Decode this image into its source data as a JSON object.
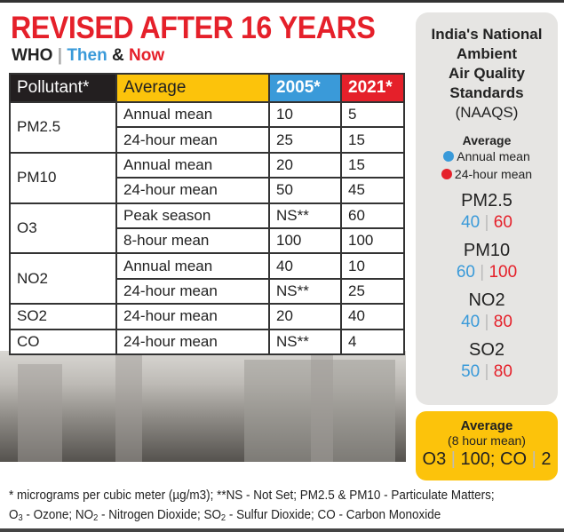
{
  "title": "REVISED AFTER 16 YEARS",
  "subtitle": {
    "who": "WHO",
    "sep": "|",
    "then": "Then",
    "amp": "&",
    "now": "Now"
  },
  "colors": {
    "red": "#e5202a",
    "blue": "#3a9ad9",
    "yellow": "#fcc30b",
    "black": "#231f20",
    "panel": "#e6e5e3"
  },
  "chart_data": {
    "type": "table",
    "columns": [
      "Pollutant*",
      "Average",
      "2005*",
      "2021*"
    ],
    "rows": [
      {
        "pollutant": "PM2.5",
        "average": "Annual mean",
        "y2005": "10",
        "y2021": "5"
      },
      {
        "pollutant": "PM2.5",
        "average": "24-hour mean",
        "y2005": "25",
        "y2021": "15"
      },
      {
        "pollutant": "PM10",
        "average": "Annual mean",
        "y2005": "20",
        "y2021": "15"
      },
      {
        "pollutant": "PM10",
        "average": "24-hour mean",
        "y2005": "50",
        "y2021": "45"
      },
      {
        "pollutant": "O3",
        "average": "Peak season",
        "y2005": "NS**",
        "y2021": "60"
      },
      {
        "pollutant": "O3",
        "average": "8-hour mean",
        "y2005": "100",
        "y2021": "100"
      },
      {
        "pollutant": "NO2",
        "average": "Annual mean",
        "y2005": "40",
        "y2021": "10"
      },
      {
        "pollutant": "NO2",
        "average": "24-hour mean",
        "y2005": "NS**",
        "y2021": "25"
      },
      {
        "pollutant": "SO2",
        "average": "24-hour mean",
        "y2005": "20",
        "y2021": "40"
      },
      {
        "pollutant": "CO",
        "average": "24-hour mean",
        "y2005": "NS**",
        "y2021": "4"
      }
    ]
  },
  "naaqs": {
    "title": [
      "India's National",
      "Ambient",
      "Air Quality",
      "Standards"
    ],
    "abbr": "(NAAQS)",
    "legend_title": "Average",
    "legend": [
      {
        "label": "Annual mean",
        "color": "#3a9ad9"
      },
      {
        "label": "24-hour mean",
        "color": "#e5202a"
      }
    ],
    "items": [
      {
        "name": "PM2.5",
        "annual": "40",
        "daily": "60"
      },
      {
        "name": "PM10",
        "annual": "60",
        "daily": "100"
      },
      {
        "name": "NO2",
        "annual": "40",
        "daily": "80"
      },
      {
        "name": "SO2",
        "annual": "50",
        "daily": "80"
      }
    ],
    "box": {
      "title": "Average",
      "sub": "(8 hour mean)",
      "o3": "O3",
      "o3_val": "100;",
      "co": "CO",
      "co_val": "2"
    }
  },
  "footnote": [
    "* micrograms per cubic meter (µg/m3); **NS - Not Set; PM2.5 & PM10 - Particulate Matters;",
    "O3 - Ozone; NO2 - Nitrogen Dioxide; SO2 - Sulfur Dioxide; CO - Carbon Monoxide"
  ]
}
